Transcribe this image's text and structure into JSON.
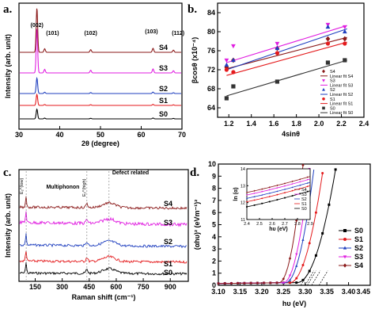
{
  "chart_data": [
    {
      "panel": "a.",
      "type": "line",
      "xlabel": "2θ (degree)",
      "ylabel": "Intensity (arb. unit)",
      "xlim": [
        30,
        70
      ],
      "xticks": [
        30,
        40,
        50,
        60,
        70
      ],
      "peak_positions": [
        34.4,
        36.3,
        47.6,
        62.9,
        67.9
      ],
      "peak_labels": [
        "(002)",
        "(101)",
        "(102)",
        "(103)",
        "(112)"
      ],
      "peak_heights": [
        1.0,
        0.08,
        0.06,
        0.09,
        0.05
      ],
      "series": [
        {
          "name": "S0",
          "color": "#000000",
          "scale": 0.22
        },
        {
          "name": "S1",
          "color": "#e41a1c",
          "scale": 0.25
        },
        {
          "name": "S2",
          "color": "#1f3fbf",
          "scale": 0.35
        },
        {
          "name": "S3",
          "color": "#e01ee0",
          "scale": 1.0
        },
        {
          "name": "S4",
          "color": "#8b1a1a",
          "scale": 1.0
        }
      ]
    },
    {
      "panel": "b.",
      "type": "scatter",
      "xlabel": "4sinθ",
      "ylabel": "βcosθ (x10⁻⁴)",
      "xlim": [
        1.1,
        2.4
      ],
      "ylim": [
        62,
        86
      ],
      "xticks": [
        1.2,
        1.4,
        1.6,
        1.8,
        2.0,
        2.2,
        2.4
      ],
      "yticks": [
        64,
        68,
        72,
        76,
        80,
        84
      ],
      "x": [
        1.18,
        1.24,
        1.63,
        2.08,
        2.23
      ],
      "series": [
        {
          "name": "S4",
          "color": "#8b1a1a",
          "marker": "diamond",
          "values": [
            72.5,
            74.0,
            76.5,
            78.5,
            78.5
          ],
          "fit": [
            72.2,
            78.8
          ]
        },
        {
          "name": "S3",
          "color": "#e01ee0",
          "marker": "tri-down",
          "values": [
            74.0,
            77.0,
            77.5,
            81.5,
            81.0
          ],
          "fit": [
            73.5,
            81.3
          ]
        },
        {
          "name": "S2",
          "color": "#1f3fbf",
          "marker": "triangle",
          "values": [
            73.0,
            74.0,
            76.5,
            81.0,
            80.0
          ],
          "fit": [
            72.0,
            80.6
          ]
        },
        {
          "name": "S1",
          "color": "#e41a1c",
          "marker": "circle",
          "values": [
            72.0,
            71.5,
            75.5,
            77.5,
            77.5
          ],
          "fit": [
            70.8,
            77.8
          ]
        },
        {
          "name": "S0",
          "color": "#333333",
          "marker": "square",
          "values": [
            66.0,
            68.5,
            69.5,
            73.5,
            74.0
          ],
          "fit": [
            66.5,
            74.0
          ]
        }
      ],
      "legend": [
        "S4",
        "Linear fit S4",
        "S3",
        "Linear fit S3",
        "S2",
        "Linear fit S2",
        "S1",
        "Linear fit S1",
        "S0",
        "Linear fit S0"
      ]
    },
    {
      "panel": "c.",
      "type": "line",
      "xlabel": "Raman shift (cm⁻¹)",
      "ylabel": "Intensity (arb. unit)",
      "xlim": [
        60,
        1000
      ],
      "xticks": [
        150,
        300,
        450,
        600,
        750,
        900
      ],
      "annotations": [
        "E₂^(low)",
        "Multiphonon",
        "E₂^(high)",
        "Defect related"
      ],
      "annotation_x": [
        100,
        330,
        437,
        560
      ],
      "series": [
        {
          "name": "S0",
          "color": "#000000"
        },
        {
          "name": "S1",
          "color": "#e41a1c"
        },
        {
          "name": "S2",
          "color": "#1f3fbf"
        },
        {
          "name": "S3",
          "color": "#e01ee0"
        },
        {
          "name": "S4",
          "color": "#8b1a1a"
        }
      ]
    },
    {
      "panel": "d.",
      "type": "line",
      "xlabel": "hυ (eV)",
      "ylabel": "(αhυ)² (eVm⁻¹)²",
      "xlim": [
        3.1,
        3.45
      ],
      "ylim": [
        0,
        10
      ],
      "xticks": [
        3.1,
        3.15,
        3.2,
        3.25,
        3.3,
        3.35,
        3.4,
        3.45
      ],
      "yticks": [
        0,
        1,
        2,
        3,
        4,
        5,
        6,
        7,
        8,
        9,
        10
      ],
      "series": [
        {
          "name": "S0",
          "color": "#000000",
          "marker": "square",
          "eg": 3.332
        },
        {
          "name": "S1",
          "color": "#e41a1c",
          "marker": "circle",
          "eg": 3.315
        },
        {
          "name": "S2",
          "color": "#1f3fbf",
          "marker": "triangle",
          "eg": 3.305
        },
        {
          "name": "S3",
          "color": "#e01ee0",
          "marker": "tri-down",
          "eg": 3.3
        },
        {
          "name": "S4",
          "color": "#8b1a1a",
          "marker": "diamond",
          "eg": 3.29
        }
      ],
      "inset": {
        "xlabel": "hυ (eV)",
        "ylabel": "ln (α)",
        "xlim": [
          2.4,
          2.9
        ],
        "ylim": [
          11,
          14
        ],
        "xticks": [
          2.4,
          2.5,
          2.6,
          2.7,
          2.8,
          2.9
        ],
        "yticks": [
          11,
          12,
          13,
          14
        ],
        "legend": [
          "S4",
          "S3",
          "S2",
          "S1",
          "S0"
        ]
      }
    }
  ]
}
